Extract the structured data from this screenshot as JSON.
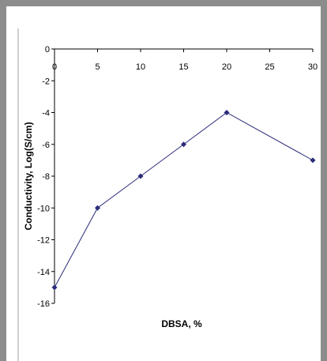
{
  "chart_data": {
    "type": "line",
    "x": [
      0,
      5,
      10,
      15,
      20,
      30
    ],
    "x_tick_labels": [
      "0",
      "5",
      "10",
      "15",
      "20",
      "25",
      "30"
    ],
    "y_tick_labels": [
      "0",
      "-2",
      "-4",
      "-6",
      "-8",
      "-10",
      "-12",
      "-14",
      "-16"
    ],
    "series": [
      {
        "values": [
          -15,
          -10,
          -8,
          -6,
          -4,
          -7
        ]
      }
    ],
    "xlabel": "DBSA, %",
    "ylabel": "Conductivity, Log(S/cm)",
    "ylim": [
      -16,
      0
    ],
    "x_positions": "categorical-equal-spacing",
    "grid": false,
    "colors": {
      "series": "#2b2c7a",
      "axis": "#000000"
    }
  }
}
